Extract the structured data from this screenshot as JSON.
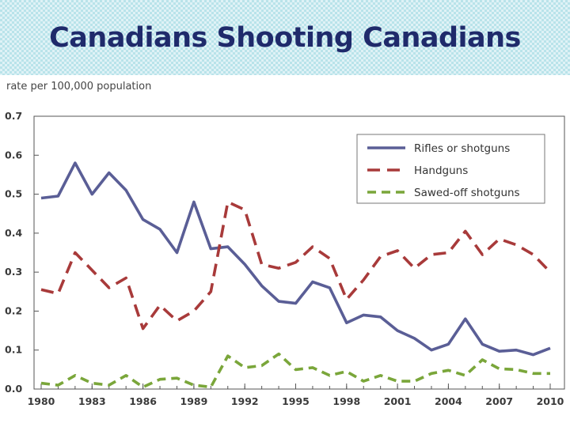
{
  "slide": {
    "title": "Canadians Shooting Canadians"
  },
  "chart_data": {
    "type": "line",
    "title": "",
    "ylabel": "rate per 100,000 population",
    "xlabel": "",
    "xlim": [
      1980,
      2010
    ],
    "ylim": [
      0,
      0.7
    ],
    "xticks": [
      "1980",
      "1983",
      "1986",
      "1989",
      "1992",
      "1995",
      "1998",
      "2001",
      "2004",
      "2007",
      "2010"
    ],
    "yticks": [
      "0.0",
      "0.1",
      "0.2",
      "0.3",
      "0.4",
      "0.5",
      "0.6",
      "0.7"
    ],
    "grid": false,
    "legend_position": "top-right",
    "x": [
      1980,
      1981,
      1982,
      1983,
      1984,
      1985,
      1986,
      1987,
      1988,
      1989,
      1990,
      1991,
      1992,
      1993,
      1994,
      1995,
      1996,
      1997,
      1998,
      1999,
      2000,
      2001,
      2002,
      2003,
      2004,
      2005,
      2006,
      2007,
      2008,
      2009,
      2010
    ],
    "series": [
      {
        "name": "Rifles or shotguns",
        "color": "#5a5e96",
        "style": "solid",
        "values": [
          0.49,
          0.495,
          0.58,
          0.5,
          0.555,
          0.51,
          0.435,
          0.41,
          0.35,
          0.48,
          0.36,
          0.365,
          0.32,
          0.265,
          0.225,
          0.22,
          0.275,
          0.26,
          0.17,
          0.19,
          0.185,
          0.15,
          0.13,
          0.1,
          0.115,
          0.18,
          0.115,
          0.097,
          0.1,
          0.088,
          0.105
        ]
      },
      {
        "name": "Handguns",
        "color": "#a83a3a",
        "style": "dashed",
        "values": [
          0.255,
          0.245,
          0.35,
          0.305,
          0.26,
          0.285,
          0.155,
          0.215,
          0.175,
          0.2,
          0.25,
          0.48,
          0.46,
          0.32,
          0.31,
          0.325,
          0.365,
          0.335,
          0.23,
          0.28,
          0.34,
          0.355,
          0.31,
          0.345,
          0.35,
          0.405,
          0.345,
          0.385,
          0.37,
          0.345,
          0.3
        ]
      },
      {
        "name": "Sawed-off shotguns",
        "color": "#7aa63a",
        "style": "dashed",
        "values": [
          0.015,
          0.01,
          0.035,
          0.015,
          0.01,
          0.035,
          0.005,
          0.025,
          0.028,
          0.01,
          0.005,
          0.085,
          0.055,
          0.06,
          0.09,
          0.05,
          0.055,
          0.035,
          0.045,
          0.02,
          0.035,
          0.02,
          0.02,
          0.04,
          0.048,
          0.035,
          0.075,
          0.052,
          0.05,
          0.04,
          0.04
        ]
      }
    ]
  }
}
